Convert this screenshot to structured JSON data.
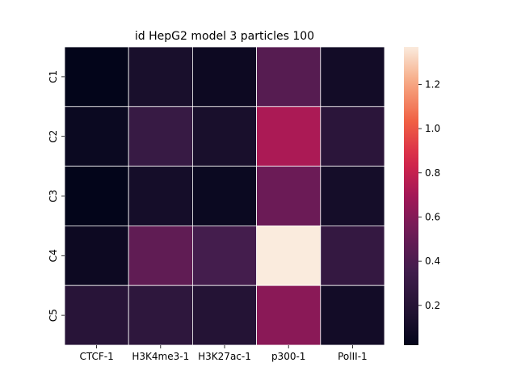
{
  "chart_data": {
    "type": "heatmap",
    "title": "id HepG2 model 3 particles 100",
    "xlabel": "",
    "ylabel": "",
    "x_categories": [
      "CTCF-1",
      "H3K4me3-1",
      "H3K27ac-1",
      "p300-1",
      "PolII-1"
    ],
    "y_categories": [
      "C1",
      "C2",
      "C3",
      "C4",
      "C5"
    ],
    "values": [
      [
        0.02,
        0.13,
        0.07,
        0.44,
        0.1
      ],
      [
        0.06,
        0.3,
        0.13,
        0.72,
        0.23
      ],
      [
        0.02,
        0.11,
        0.06,
        0.52,
        0.11
      ],
      [
        0.07,
        0.48,
        0.37,
        1.37,
        0.28
      ],
      [
        0.21,
        0.25,
        0.19,
        0.62,
        0.1
      ]
    ],
    "colorbar": {
      "colormap": "rocket",
      "vmin": 0.02,
      "vmax": 1.37,
      "ticks": [
        0.2,
        0.4,
        0.6,
        0.8,
        1.0,
        1.2
      ],
      "tick_labels": [
        "0.2",
        "0.4",
        "0.6",
        "0.8",
        "1.0",
        "1.2"
      ]
    },
    "grid": false,
    "cell_border_color": "#ffffff"
  }
}
